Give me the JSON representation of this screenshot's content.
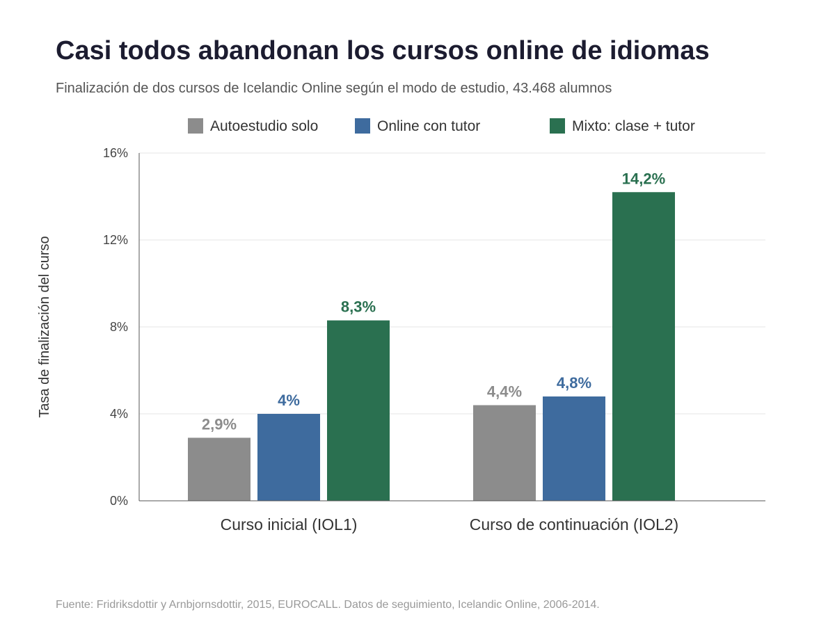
{
  "title": "Casi todos abandonan los cursos online de idiomas",
  "subtitle": "Finalización de dos cursos de Icelandic Online según el modo de estudio, 43.468 alumnos",
  "source": "Fuente: Fridriksdottir y Arnbjornsdottir, 2015, EUROCALL. Datos de seguimiento, Icelandic Online, 2006-2014.",
  "colors": {
    "autoestudio": "#8c8c8c",
    "online": "#3e6b9e",
    "mixto": "#2a7050",
    "axis": "#555555",
    "grid": "#e6e6e6",
    "text": "#333333"
  },
  "chart_data": {
    "type": "bar",
    "categories": [
      "Curso inicial (IOL1)",
      "Curso de continuación (IOL2)"
    ],
    "series": [
      {
        "name": "Autoestudio solo",
        "values": [
          2.9,
          4.4
        ],
        "labels": [
          "2,9%",
          "4,4%"
        ]
      },
      {
        "name": "Online con tutor",
        "values": [
          4.0,
          4.8
        ],
        "labels": [
          "4%",
          "4,8%"
        ]
      },
      {
        "name": "Mixto: clase + tutor",
        "values": [
          8.3,
          14.2
        ],
        "labels": [
          "8,3%",
          "14,2%"
        ]
      }
    ],
    "ylabel": "Tasa de finalización del curso",
    "xlabel": "",
    "ylim": [
      0,
      16
    ],
    "yticks": [
      0,
      4,
      8,
      12,
      16
    ],
    "ytick_labels": [
      "0%",
      "4%",
      "8%",
      "12%",
      "16%"
    ],
    "grid": true,
    "legend": "top"
  }
}
